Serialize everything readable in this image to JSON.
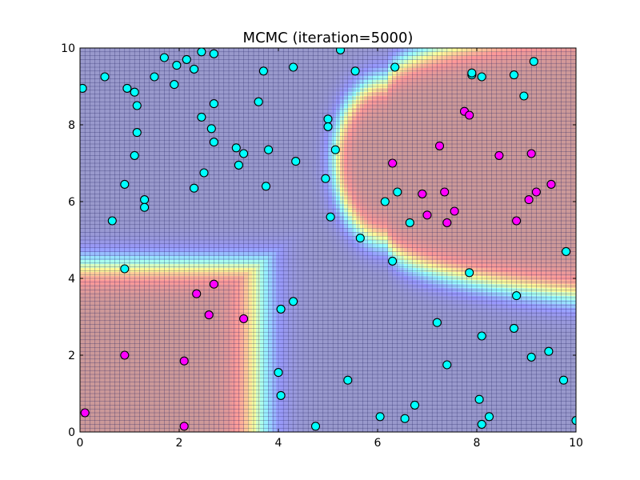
{
  "chart_data": {
    "type": "scatter",
    "title": "MCMC (iteration=5000)",
    "xlabel": "",
    "ylabel": "",
    "xlim": [
      0,
      10
    ],
    "ylim": [
      0,
      10
    ],
    "xticks": [
      "0",
      "2",
      "4",
      "6",
      "8",
      "10"
    ],
    "yticks": [
      "0",
      "2",
      "4",
      "6",
      "8",
      "10"
    ],
    "grid": "fine mesh, 0.1 spacing",
    "background": "colormap heatmap of class probability (red = magenta class region, blue = cyan class region)",
    "colors": {
      "class_a": "#ff00ff",
      "class_b": "#00ffff",
      "marker_edge": "#000000",
      "mesh": "#202060"
    },
    "series": [
      {
        "color": "#ff00ff",
        "points": [
          [
            0.1,
            0.5
          ],
          [
            0.9,
            2.0
          ],
          [
            2.1,
            1.85
          ],
          [
            2.1,
            0.15
          ],
          [
            2.35,
            3.6
          ],
          [
            2.6,
            3.05
          ],
          [
            2.7,
            3.85
          ],
          [
            3.3,
            2.95
          ],
          [
            6.3,
            7.0
          ],
          [
            6.9,
            6.2
          ],
          [
            7.0,
            5.65
          ],
          [
            7.25,
            7.45
          ],
          [
            7.35,
            6.25
          ],
          [
            7.4,
            5.45
          ],
          [
            7.55,
            5.75
          ],
          [
            7.75,
            8.35
          ],
          [
            7.85,
            8.25
          ],
          [
            8.45,
            7.2
          ],
          [
            8.8,
            5.5
          ],
          [
            9.05,
            6.05
          ],
          [
            9.1,
            7.25
          ],
          [
            9.2,
            6.25
          ],
          [
            9.5,
            6.45
          ]
        ]
      },
      {
        "color": "#00ffff",
        "points": [
          [
            0.05,
            8.95
          ],
          [
            0.5,
            9.25
          ],
          [
            0.65,
            5.5
          ],
          [
            0.9,
            6.45
          ],
          [
            0.9,
            4.25
          ],
          [
            0.95,
            8.95
          ],
          [
            1.1,
            8.85
          ],
          [
            1.1,
            7.2
          ],
          [
            1.15,
            8.5
          ],
          [
            1.15,
            7.8
          ],
          [
            1.3,
            6.05
          ],
          [
            1.3,
            5.85
          ],
          [
            1.5,
            9.25
          ],
          [
            1.7,
            9.75
          ],
          [
            1.9,
            9.05
          ],
          [
            1.95,
            9.55
          ],
          [
            2.15,
            9.7
          ],
          [
            2.3,
            9.45
          ],
          [
            2.3,
            6.35
          ],
          [
            2.45,
            8.2
          ],
          [
            2.45,
            9.9
          ],
          [
            2.5,
            6.75
          ],
          [
            2.65,
            7.9
          ],
          [
            2.7,
            9.85
          ],
          [
            2.7,
            7.55
          ],
          [
            2.7,
            8.55
          ],
          [
            3.15,
            7.4
          ],
          [
            3.2,
            6.95
          ],
          [
            3.3,
            7.25
          ],
          [
            3.6,
            8.6
          ],
          [
            3.7,
            9.4
          ],
          [
            3.75,
            6.4
          ],
          [
            3.8,
            7.35
          ],
          [
            4.0,
            1.55
          ],
          [
            4.05,
            3.2
          ],
          [
            4.05,
            0.95
          ],
          [
            4.3,
            9.5
          ],
          [
            4.3,
            3.4
          ],
          [
            4.35,
            7.05
          ],
          [
            4.75,
            0.15
          ],
          [
            4.95,
            6.6
          ],
          [
            5.0,
            8.15
          ],
          [
            5.0,
            7.95
          ],
          [
            5.05,
            5.6
          ],
          [
            5.15,
            7.35
          ],
          [
            5.25,
            9.95
          ],
          [
            5.4,
            1.35
          ],
          [
            5.55,
            9.4
          ],
          [
            5.65,
            5.05
          ],
          [
            6.05,
            0.4
          ],
          [
            6.15,
            6.0
          ],
          [
            6.3,
            4.45
          ],
          [
            6.35,
            9.5
          ],
          [
            6.4,
            6.25
          ],
          [
            6.55,
            0.35
          ],
          [
            6.65,
            5.45
          ],
          [
            6.75,
            0.7
          ],
          [
            7.2,
            2.85
          ],
          [
            7.4,
            1.75
          ],
          [
            7.85,
            4.15
          ],
          [
            7.9,
            9.3
          ],
          [
            7.9,
            9.35
          ],
          [
            8.05,
            0.85
          ],
          [
            8.1,
            2.5
          ],
          [
            8.1,
            9.25
          ],
          [
            8.1,
            0.2
          ],
          [
            8.25,
            0.4
          ],
          [
            8.75,
            9.3
          ],
          [
            8.75,
            2.7
          ],
          [
            8.8,
            3.55
          ],
          [
            8.95,
            8.75
          ],
          [
            9.1,
            1.95
          ],
          [
            9.15,
            9.65
          ],
          [
            9.45,
            2.1
          ],
          [
            9.75,
            1.35
          ],
          [
            9.8,
            4.7
          ],
          [
            10.0,
            0.3
          ]
        ]
      }
    ]
  }
}
